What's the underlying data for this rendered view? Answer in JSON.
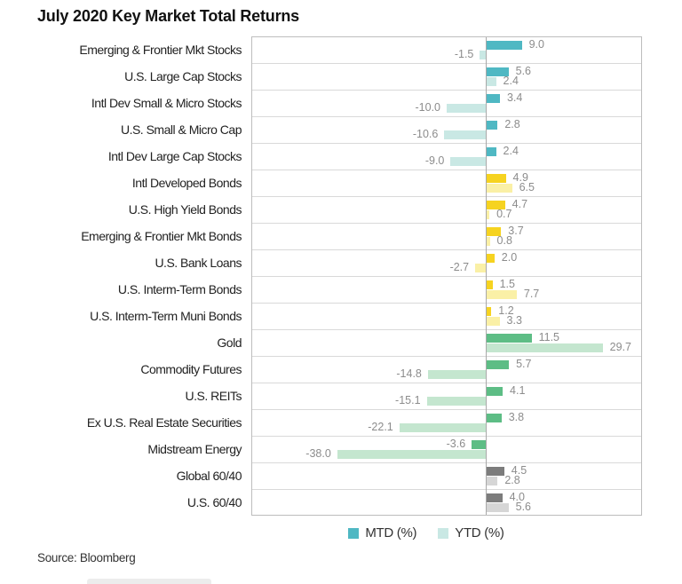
{
  "title": "July 2020 Key Market Total Returns",
  "source": "Source: Bloomberg",
  "legend": {
    "items": [
      {
        "label": "MTD (%)",
        "color": "#4fb8c3"
      },
      {
        "label": "YTD (%)",
        "color": "#c9e8e4"
      }
    ]
  },
  "colors": {
    "stocks": {
      "mtd": "#4fb8c3",
      "ytd": "#c9e8e4"
    },
    "bonds": {
      "mtd": "#f6d320",
      "ytd": "#faf0a6"
    },
    "real_assets": {
      "mtd": "#5dbd85",
      "ytd": "#c4e6cf"
    },
    "blend": {
      "mtd": "#7c7c7c",
      "ytd": "#d6d6d6"
    }
  },
  "chart_data": {
    "type": "bar",
    "orientation": "horizontal",
    "title": "July 2020 Key Market Total Returns",
    "series_names": [
      "MTD (%)",
      "YTD (%)"
    ],
    "value_unit": "percent",
    "xlim": [
      -45,
      40
    ],
    "grid": false,
    "legend_position": "bottom",
    "categories": [
      {
        "label": "Emerging & Frontier Mkt Stocks",
        "group": "stocks",
        "mtd": 9.0,
        "ytd": -1.5
      },
      {
        "label": "U.S. Large Cap Stocks",
        "group": "stocks",
        "mtd": 5.6,
        "ytd": 2.4
      },
      {
        "label": "Intl Dev Small & Micro Stocks",
        "group": "stocks",
        "mtd": 3.4,
        "ytd": -10.0
      },
      {
        "label": "U.S. Small & Micro Cap",
        "group": "stocks",
        "mtd": 2.8,
        "ytd": -10.6
      },
      {
        "label": "Intl Dev Large Cap Stocks",
        "group": "stocks",
        "mtd": 2.4,
        "ytd": -9.0
      },
      {
        "label": "Intl Developed Bonds",
        "group": "bonds",
        "mtd": 4.9,
        "ytd": 6.5
      },
      {
        "label": "U.S. High Yield Bonds",
        "group": "bonds",
        "mtd": 4.7,
        "ytd": 0.7
      },
      {
        "label": "Emerging & Frontier Mkt Bonds",
        "group": "bonds",
        "mtd": 3.7,
        "ytd": 0.8
      },
      {
        "label": "U.S. Bank Loans",
        "group": "bonds",
        "mtd": 2.0,
        "ytd": -2.7
      },
      {
        "label": "U.S. Interm-Term Bonds",
        "group": "bonds",
        "mtd": 1.5,
        "ytd": 7.7
      },
      {
        "label": "U.S. Interm-Term Muni Bonds",
        "group": "bonds",
        "mtd": 1.2,
        "ytd": 3.3
      },
      {
        "label": "Gold",
        "group": "real_assets",
        "mtd": 11.5,
        "ytd": 29.7
      },
      {
        "label": "Commodity Futures",
        "group": "real_assets",
        "mtd": 5.7,
        "ytd": -14.8
      },
      {
        "label": "U.S. REITs",
        "group": "real_assets",
        "mtd": 4.1,
        "ytd": -15.1
      },
      {
        "label": "Ex U.S. Real Estate Securities",
        "group": "real_assets",
        "mtd": 3.8,
        "ytd": -22.1
      },
      {
        "label": "Midstream Energy",
        "group": "real_assets",
        "mtd": -3.6,
        "ytd": -38.0
      },
      {
        "label": "Global 60/40",
        "group": "blend",
        "mtd": 4.5,
        "ytd": 2.8
      },
      {
        "label": "U.S. 60/40",
        "group": "blend",
        "mtd": 4.0,
        "ytd": 5.6
      }
    ]
  }
}
